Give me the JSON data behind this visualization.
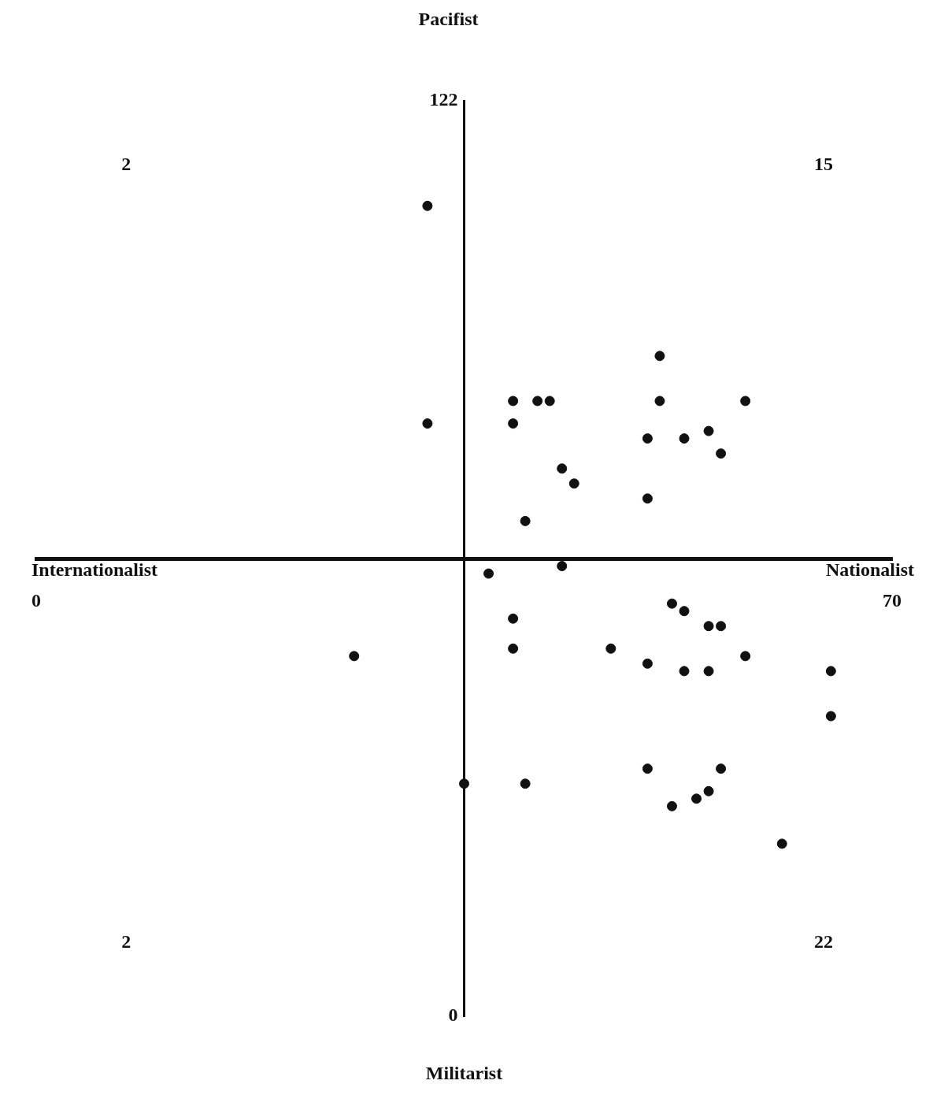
{
  "chart_data": {
    "type": "scatter",
    "x": [
      32,
      32,
      39,
      41,
      42,
      39,
      51,
      51,
      58,
      50,
      53,
      55,
      56,
      43,
      44,
      50,
      40,
      43,
      37,
      52,
      53,
      39,
      55,
      56,
      39,
      47,
      58,
      50,
      53,
      55,
      26,
      65,
      65,
      50,
      56,
      35,
      40,
      52,
      54,
      55,
      61
    ],
    "values": [
      108,
      79,
      82,
      82,
      82,
      79,
      88,
      82,
      82,
      77,
      77,
      78,
      75,
      73,
      71,
      69,
      66,
      60,
      59,
      55,
      54,
      53,
      52,
      52,
      49,
      49,
      48,
      47,
      46,
      46,
      48,
      46,
      40,
      33,
      33,
      31,
      31,
      28,
      29,
      30,
      23
    ],
    "color": "#111111",
    "marker": "circle",
    "xlim": [
      0,
      70
    ],
    "ylim": [
      0,
      122
    ],
    "xticks": [
      0,
      70
    ],
    "yticks": [
      0,
      122
    ],
    "annotations": [
      "Pacifist",
      "Internationalist",
      "Nationalist",
      "Militarist",
      "2",
      "15",
      "2",
      "22"
    ]
  }
}
